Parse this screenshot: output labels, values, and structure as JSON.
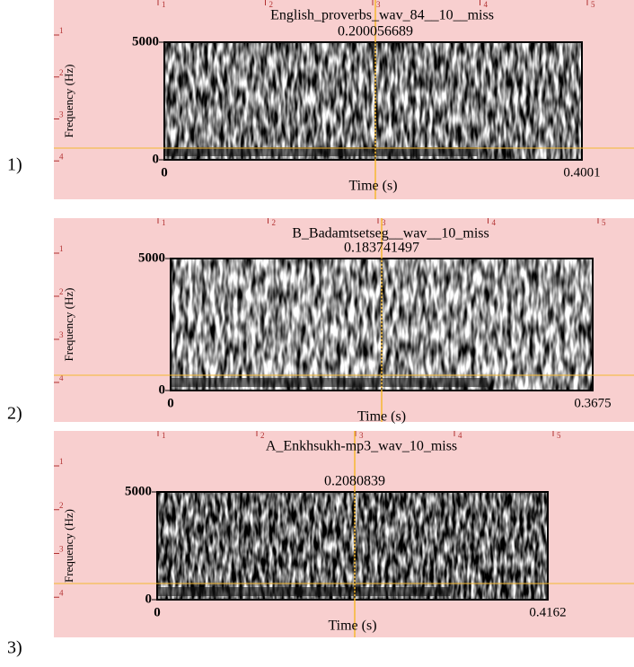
{
  "panels": [
    {
      "label": "1)",
      "title": "English_proverbs_wav_84__10__miss",
      "cursor": "0.200056689",
      "y_label": "Frequency (Hz)",
      "y_top": "5000",
      "y_bottom": "0",
      "x_left": "0",
      "x_right": "0.4001",
      "x_label": "Time (s)",
      "ruler_top": [
        "1",
        "2",
        "3",
        "4",
        "5"
      ],
      "ruler_left": [
        "1",
        "2",
        "3",
        "4"
      ]
    },
    {
      "label": "2)",
      "title": "B_Badamtsetseg__wav__10_miss",
      "cursor": "0.183741497",
      "y_label": "Frequency (Hz)",
      "y_top": "5000",
      "y_bottom": "0",
      "x_left": "0",
      "x_right": "0.3675",
      "x_label": "Time (s)",
      "ruler_top": [
        "1",
        "2",
        "3",
        "4",
        "5"
      ],
      "ruler_left": [
        "1",
        "2",
        "3",
        "4"
      ]
    },
    {
      "label": "3)",
      "title": "A_Enkhsukh-mp3_wav_10_miss",
      "cursor": "0.2080839",
      "y_label": "Frequency (Hz)",
      "y_top": "5000",
      "y_bottom": "0",
      "x_left": "0",
      "x_right": "0.4162",
      "x_label": "Time (s)",
      "ruler_top": [
        "1",
        "2",
        "3",
        "4",
        "5"
      ],
      "ruler_left": [
        "1",
        "2",
        "3",
        "4"
      ]
    }
  ]
}
